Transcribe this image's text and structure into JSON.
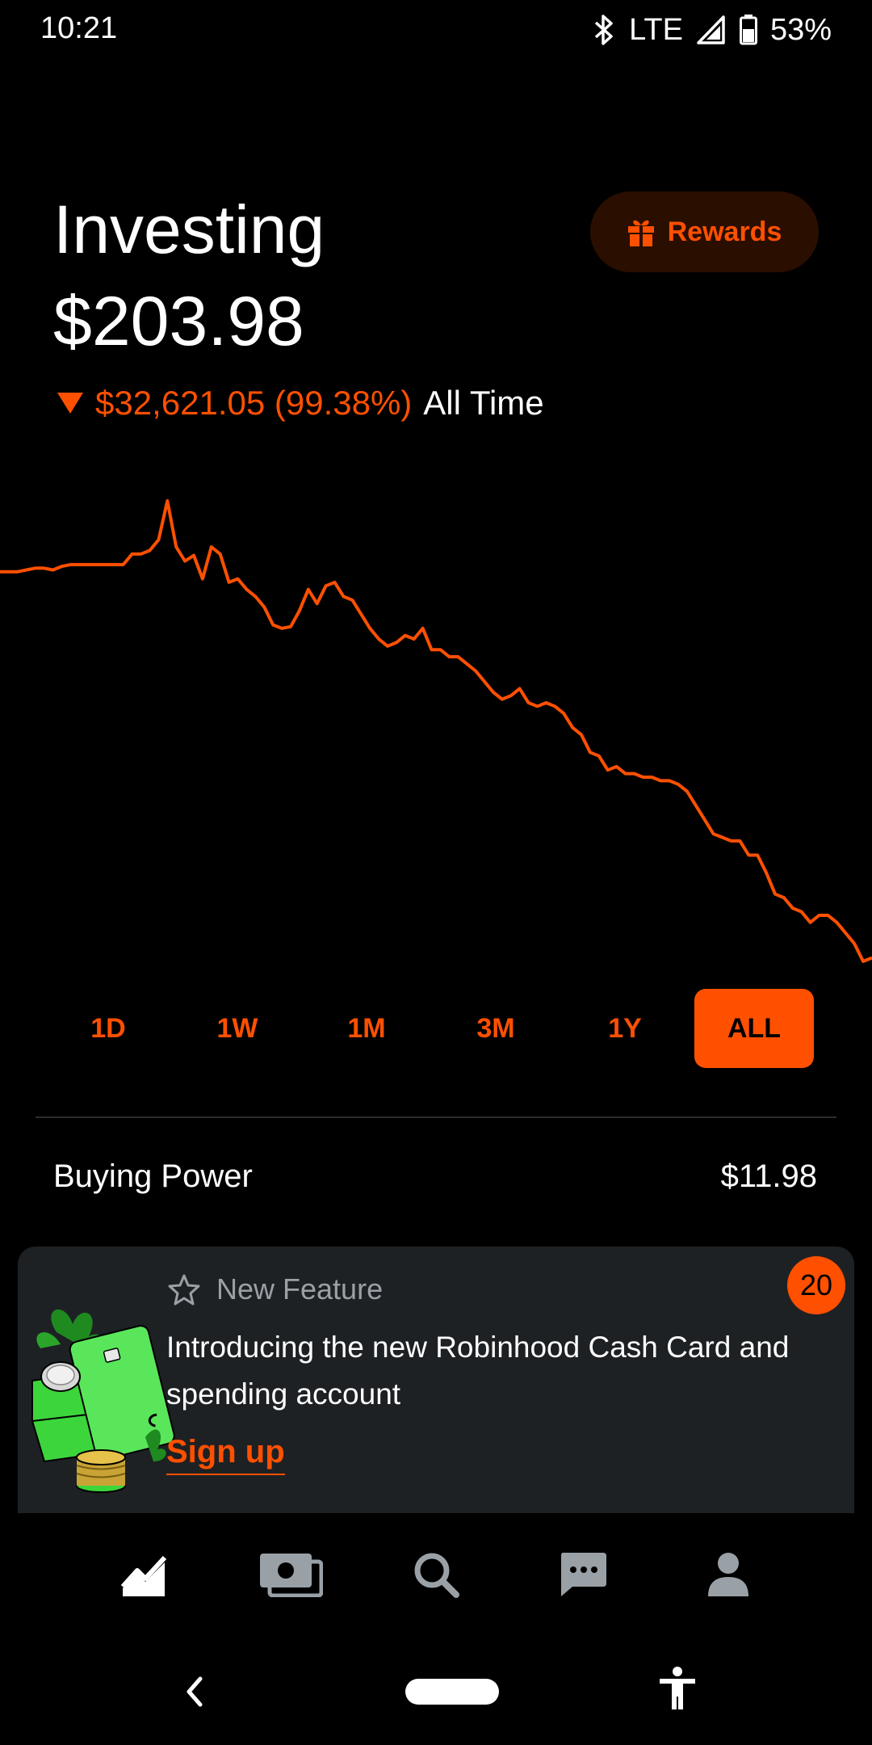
{
  "status_bar": {
    "time": "10:21",
    "network": "LTE",
    "battery": "53%",
    "icons": [
      "bluetooth-icon",
      "signal-icon",
      "battery-icon"
    ]
  },
  "header": {
    "title": "Investing",
    "value": "$203.98",
    "change": "$32,621.05 (99.38%)",
    "change_direction": "down",
    "period": "All Time",
    "rewards_label": "Rewards"
  },
  "colors": {
    "accent": "#ff5000",
    "background": "#000000",
    "card": "#1e2124",
    "muted": "#9aa1a6"
  },
  "chart_data": {
    "type": "line",
    "series_values": [
      100,
      100,
      100,
      100.5,
      101,
      101,
      100.5,
      101.5,
      102,
      102,
      102,
      102,
      102,
      102,
      102,
      105,
      105,
      106,
      109,
      120,
      107,
      103,
      104.6,
      98,
      107,
      105,
      97,
      98,
      95,
      93,
      90,
      85,
      84,
      84.5,
      89,
      95,
      91,
      96,
      97,
      93,
      92,
      88,
      84,
      81,
      79,
      80,
      82,
      81,
      84,
      78,
      78,
      76,
      76,
      74,
      72,
      69,
      66,
      64,
      65,
      67,
      63,
      62,
      63,
      62,
      60,
      56,
      54,
      49,
      48,
      44,
      45,
      43,
      43,
      42,
      42,
      41,
      41,
      40,
      38,
      34,
      30,
      26,
      25,
      24,
      24,
      20,
      20,
      15,
      9,
      8,
      5,
      4,
      1,
      3,
      3,
      1,
      -2,
      -5,
      -10,
      -9
    ],
    "trend": "decline",
    "line_color": "#ff5000",
    "grid": false,
    "axes_visible": false
  },
  "range_tabs": [
    {
      "label": "1D",
      "active": false
    },
    {
      "label": "1W",
      "active": false
    },
    {
      "label": "1M",
      "active": false
    },
    {
      "label": "3M",
      "active": false
    },
    {
      "label": "1Y",
      "active": false
    },
    {
      "label": "ALL",
      "active": true
    }
  ],
  "buying_power": {
    "label": "Buying Power",
    "value": "$11.98"
  },
  "feature_card": {
    "tag": "New Feature",
    "text": "Introducing the new Robinhood Cash Card and spending account",
    "cta": "Sign up",
    "badge": "20"
  },
  "bottom_nav": [
    {
      "icon": "investing-chart-icon",
      "active": true
    },
    {
      "icon": "cash-card-icon",
      "active": false
    },
    {
      "icon": "search-icon",
      "active": false
    },
    {
      "icon": "messages-icon",
      "active": false
    },
    {
      "icon": "account-icon",
      "active": false
    }
  ]
}
